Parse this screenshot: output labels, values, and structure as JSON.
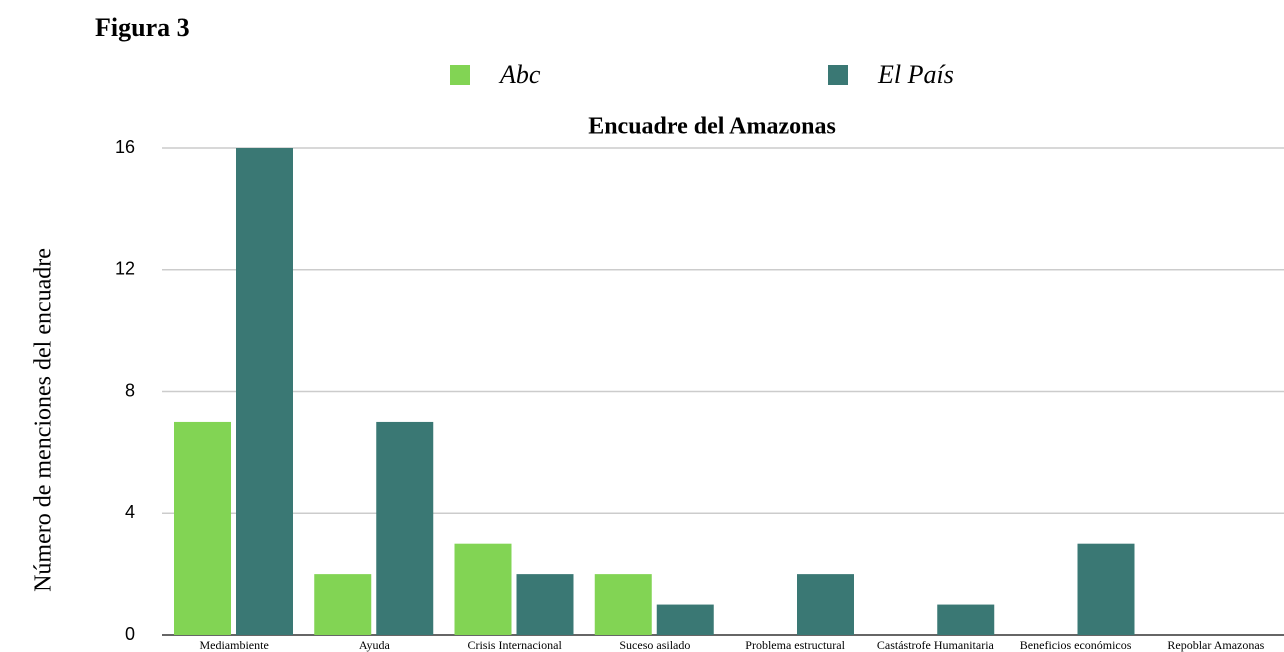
{
  "figure_label": "Figura 3",
  "chart_data": {
    "type": "bar",
    "title": "Encuadre del Amazonas",
    "y_label": "Número de menciones del encuadre",
    "categories": [
      "Mediambiente",
      "Ayuda",
      "Crisis Internacional",
      "Suceso asilado",
      "Problema estructural",
      "Castástrofe Humanitaria",
      "Beneficios económicos",
      "Repoblar Amazonas"
    ],
    "series": [
      {
        "name": "Abc",
        "color": "#82d454",
        "values": [
          7,
          2,
          3,
          2,
          0,
          0,
          0,
          0
        ]
      },
      {
        "name": "El País",
        "color": "#3a7874",
        "values": [
          16,
          7,
          2,
          1,
          2,
          1,
          3,
          0
        ]
      }
    ],
    "ylim": [
      0,
      16
    ],
    "yticks": [
      0,
      4,
      8,
      12,
      16
    ],
    "grid": true,
    "legend": "top"
  }
}
